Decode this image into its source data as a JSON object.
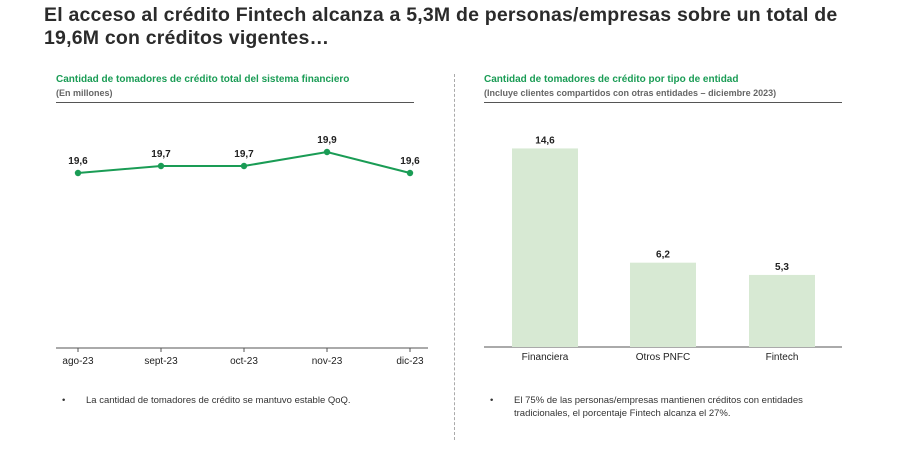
{
  "headline": "El acceso al crédito Fintech alcanza a 5,3M de personas/empresas sobre un total de\n19,6M con créditos vigentes…",
  "left_panel": {
    "title": "Cantidad de tomadores de crédito total del sistema financiero",
    "subtitle": "(En millones)",
    "bullet": "La cantidad de tomadores de crédito se mantuvo estable QoQ."
  },
  "right_panel": {
    "title": "Cantidad de tomadores de crédito por tipo de entidad",
    "subtitle": "(Incluye clientes compartidos con otras entidades – diciembre 2023)",
    "bullet_line1": "El 75% de las personas/empresas mantienen créditos con entidades",
    "bullet_line2": "tradicionales, el porcentaje Fintech alcanza el 27%."
  },
  "bullet_symbol": "•",
  "colors": {
    "accent": "#1a9c55",
    "bar_fill": "#d7e9d3",
    "axis": "#555555"
  },
  "chart_data": [
    {
      "type": "line",
      "categories": [
        "ago-23",
        "sept-23",
        "oct-23",
        "nov-23",
        "dic-23"
      ],
      "values": [
        19.6,
        19.7,
        19.7,
        19.9,
        19.6
      ],
      "labels": [
        "19,6",
        "19,7",
        "19,7",
        "19,9",
        "19,6"
      ],
      "title": "Cantidad de tomadores de crédito total del sistema financiero",
      "subtitle": "(En millones)",
      "color": "#1a9c55"
    },
    {
      "type": "bar",
      "categories": [
        "Financiera",
        "Otros PNFC",
        "Fintech"
      ],
      "values": [
        14.6,
        6.2,
        5.3
      ],
      "labels": [
        "14,6",
        "6,2",
        "5,3"
      ],
      "title": "Cantidad de tomadores de crédito por tipo de entidad",
      "subtitle": "(Incluye clientes compartidos con otras entidades – diciembre 2023)",
      "color": "#d7e9d3"
    }
  ]
}
